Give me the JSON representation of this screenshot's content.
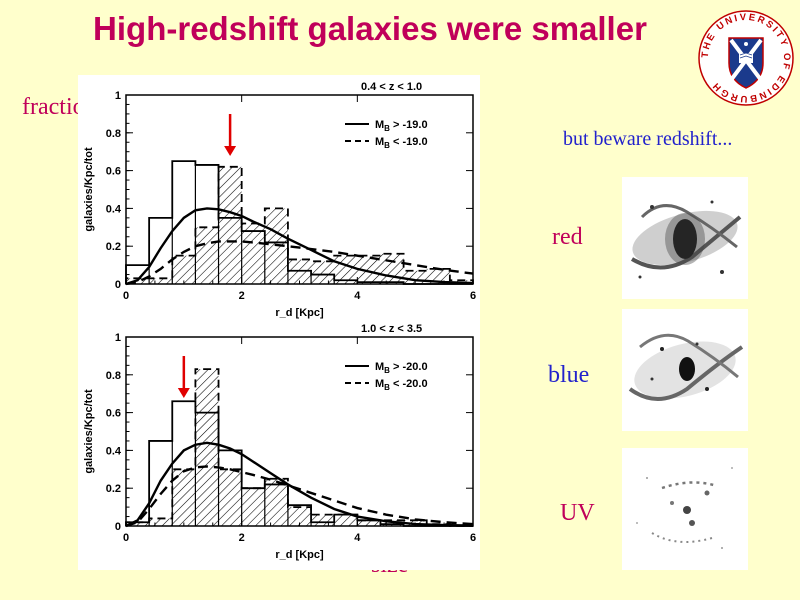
{
  "slide": {
    "title": "High-redshift galaxies were smaller",
    "logo_text": "THE UNIVERSITY OF EDINBURGH",
    "fraction_label": "fraction",
    "note": "but beware redshift...",
    "size_label": "size",
    "image_labels": [
      "red",
      "blue",
      "UV"
    ],
    "colors": {
      "title": "#c0005a",
      "blue_text": "#2222cc",
      "background": "#ffffcc",
      "arrow": "#e00000"
    }
  },
  "chart_data": [
    {
      "type": "histogram",
      "panel_label": "0.4 < z < 1.0",
      "xlabel": "r_d [Kpc]",
      "ylabel": "galaxies/Kpc/tot",
      "xlim": [
        0,
        6
      ],
      "ylim": [
        0,
        1
      ],
      "xticks": [
        0,
        2,
        4,
        6
      ],
      "yticks": [
        0,
        0.2,
        0.4,
        0.6,
        0.8,
        1
      ],
      "bin_edges": [
        0,
        0.4,
        0.8,
        1.2,
        1.6,
        2.0,
        2.4,
        2.8,
        3.2,
        3.6,
        4.0,
        4.4,
        4.8,
        5.2,
        5.6,
        6.0
      ],
      "arrow_x": 1.8,
      "series": [
        {
          "name": "M_B > -19.0",
          "style": "solid",
          "hist": [
            0.1,
            0.35,
            0.65,
            0.63,
            0.35,
            0.28,
            0.22,
            0.07,
            0.05,
            0.02,
            0.01,
            0.01,
            0,
            0,
            0
          ],
          "curve_x": [
            0,
            0.2,
            0.4,
            0.6,
            0.8,
            1.0,
            1.2,
            1.4,
            1.6,
            1.8,
            2.0,
            2.2,
            2.5,
            2.8,
            3.2,
            3.6,
            4.0,
            4.5,
            5.0,
            5.5,
            6.0
          ],
          "curve_y": [
            0.0,
            0.02,
            0.09,
            0.19,
            0.28,
            0.35,
            0.39,
            0.4,
            0.395,
            0.38,
            0.36,
            0.33,
            0.29,
            0.24,
            0.18,
            0.12,
            0.08,
            0.045,
            0.02,
            0.01,
            0.005
          ]
        },
        {
          "name": "M_B < -19.0",
          "style": "dashed",
          "hist": [
            0.03,
            0.03,
            0.15,
            0.3,
            0.62,
            0.32,
            0.4,
            0.13,
            0.12,
            0.15,
            0.15,
            0.16,
            0.07,
            0.08,
            0.02
          ],
          "curve_x": [
            0,
            0.2,
            0.4,
            0.6,
            0.8,
            1.0,
            1.2,
            1.4,
            1.6,
            1.8,
            2.0,
            2.2,
            2.5,
            2.8,
            3.2,
            3.6,
            4.0,
            4.5,
            5.0,
            5.5,
            6.0
          ],
          "curve_y": [
            0.0,
            0.01,
            0.04,
            0.08,
            0.13,
            0.17,
            0.2,
            0.215,
            0.225,
            0.225,
            0.225,
            0.22,
            0.21,
            0.2,
            0.185,
            0.17,
            0.15,
            0.125,
            0.1,
            0.075,
            0.055
          ]
        }
      ]
    },
    {
      "type": "histogram",
      "panel_label": "1.0 < z < 3.5",
      "xlabel": "r_d [Kpc]",
      "ylabel": "galaxies/Kpc/tot",
      "xlim": [
        0,
        6
      ],
      "ylim": [
        0,
        1
      ],
      "xticks": [
        0,
        2,
        4,
        6
      ],
      "yticks": [
        0,
        0.2,
        0.4,
        0.6,
        0.8,
        1
      ],
      "bin_edges": [
        0,
        0.4,
        0.8,
        1.2,
        1.6,
        2.0,
        2.4,
        2.8,
        3.2,
        3.6,
        4.0,
        4.4,
        4.8,
        5.2,
        5.6,
        6.0
      ],
      "arrow_x": 1.0,
      "series": [
        {
          "name": "M_B > -20.0",
          "style": "solid",
          "hist": [
            0.02,
            0.45,
            0.66,
            0.6,
            0.4,
            0.2,
            0.22,
            0.11,
            0.02,
            0.06,
            0.03,
            0.01,
            0,
            0,
            0
          ],
          "curve_x": [
            0,
            0.2,
            0.4,
            0.6,
            0.8,
            1.0,
            1.2,
            1.4,
            1.6,
            1.8,
            2.0,
            2.2,
            2.5,
            2.8,
            3.2,
            3.6,
            4.0,
            4.5,
            5.0,
            5.5,
            6.0
          ],
          "curve_y": [
            0.0,
            0.03,
            0.12,
            0.24,
            0.33,
            0.4,
            0.43,
            0.44,
            0.43,
            0.41,
            0.38,
            0.34,
            0.28,
            0.22,
            0.15,
            0.09,
            0.05,
            0.025,
            0.01,
            0.005,
            0.002
          ]
        },
        {
          "name": "M_B < -20.0",
          "style": "dashed",
          "hist": [
            0.02,
            0.04,
            0.3,
            0.83,
            0.3,
            0.2,
            0.25,
            0.1,
            0.06,
            0.06,
            0.03,
            0.03,
            0.03,
            0.01,
            0
          ],
          "curve_x": [
            0,
            0.2,
            0.4,
            0.6,
            0.8,
            1.0,
            1.2,
            1.4,
            1.6,
            1.8,
            2.0,
            2.2,
            2.5,
            2.8,
            3.2,
            3.6,
            4.0,
            4.5,
            5.0,
            5.5,
            6.0
          ],
          "curve_y": [
            0.0,
            0.02,
            0.09,
            0.17,
            0.24,
            0.29,
            0.31,
            0.315,
            0.31,
            0.3,
            0.285,
            0.27,
            0.245,
            0.215,
            0.175,
            0.135,
            0.095,
            0.06,
            0.035,
            0.02,
            0.01
          ]
        }
      ]
    }
  ]
}
